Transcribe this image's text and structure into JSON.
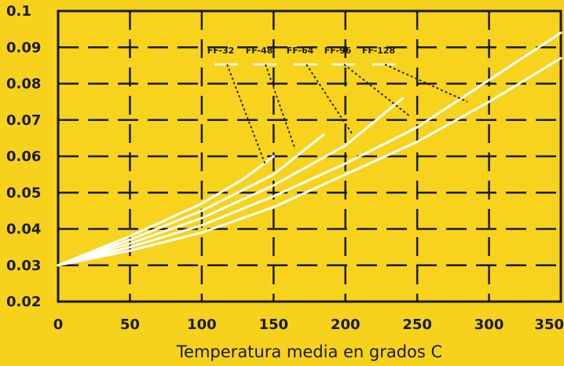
{
  "chart_data": {
    "type": "line",
    "title": "",
    "xlabel": "Temperatura media en grados C",
    "ylabel": "",
    "xlim": [
      0,
      350
    ],
    "ylim": [
      0.02,
      0.1
    ],
    "x_ticks": [
      "0",
      "50",
      "100",
      "150",
      "200",
      "250",
      "300",
      "350"
    ],
    "y_ticks": [
      "0.02",
      "0.03",
      "0.04",
      "0.05",
      "0.06",
      "0.07",
      "0.08",
      "0.09",
      "0.1"
    ],
    "grid": true,
    "series": [
      {
        "name": "FF-32",
        "x": [
          0,
          50,
          100,
          130,
          150
        ],
        "y": [
          0.03,
          0.038,
          0.047,
          0.054,
          0.06
        ]
      },
      {
        "name": "FF-48",
        "x": [
          0,
          50,
          100,
          150,
          185
        ],
        "y": [
          0.03,
          0.037,
          0.045,
          0.055,
          0.066
        ]
      },
      {
        "name": "FF-64",
        "x": [
          0,
          50,
          100,
          150,
          200,
          240
        ],
        "y": [
          0.03,
          0.036,
          0.043,
          0.052,
          0.063,
          0.076
        ]
      },
      {
        "name": "FF-96",
        "x": [
          0,
          50,
          100,
          150,
          200,
          250,
          300,
          350
        ],
        "y": [
          0.03,
          0.035,
          0.041,
          0.049,
          0.058,
          0.068,
          0.081,
          0.094
        ]
      },
      {
        "name": "FF-128",
        "x": [
          0,
          50,
          100,
          150,
          200,
          250,
          300,
          350
        ],
        "y": [
          0.03,
          0.034,
          0.039,
          0.046,
          0.055,
          0.064,
          0.075,
          0.087
        ]
      }
    ],
    "colors": {
      "background": "#f6d21c",
      "plot_area": "#f7d31d",
      "frame": "#1a1a1a",
      "grid": "#1a1a1a",
      "series": "#ffffff",
      "leader": "#1a1a1a"
    }
  }
}
